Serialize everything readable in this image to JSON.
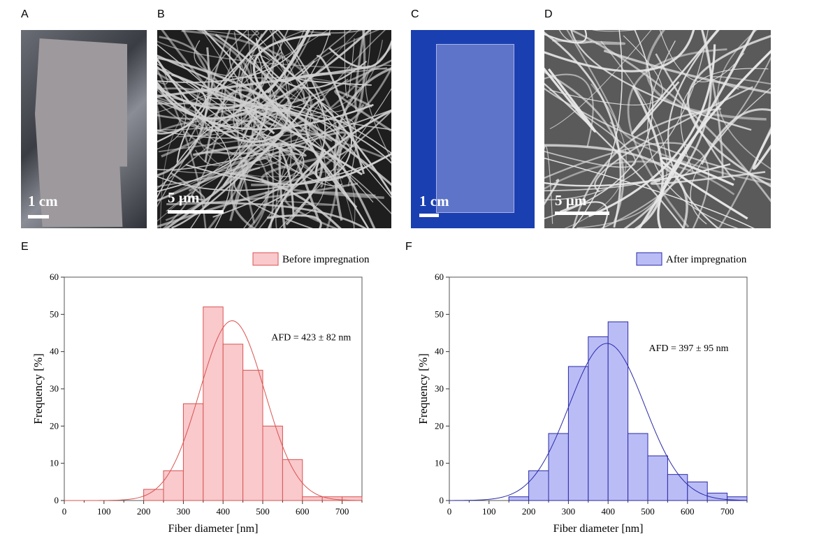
{
  "panels": {
    "A": {
      "label": "A",
      "scale": "1 cm"
    },
    "B": {
      "label": "B",
      "scale": "5 µm"
    },
    "C": {
      "label": "C",
      "scale": "1 cm"
    },
    "D": {
      "label": "D",
      "scale": "5 µm"
    },
    "E": {
      "label": "E"
    },
    "F": {
      "label": "F"
    }
  },
  "colors": {
    "before_fill": "#f9c9cc",
    "before_line": "#d9534f",
    "after_fill": "#babcf6",
    "after_line": "#2a2aa8"
  },
  "chart_data": [
    {
      "type": "bar",
      "panel": "E",
      "xlabel": "Fiber diameter [nm]",
      "ylabel": "Frequency [%]",
      "xlim": [
        0,
        750
      ],
      "ylim": [
        0,
        60
      ],
      "xticks": [
        "0",
        "100",
        "200",
        "300",
        "400",
        "500",
        "600",
        "700"
      ],
      "yticks": [
        "0",
        "10",
        "20",
        "30",
        "40",
        "50",
        "60"
      ],
      "legend": "Before impregnation",
      "legend_position": "top-right",
      "annotation": "AFD = 423 ± 82 nm",
      "bin_width": 50,
      "bin_starts": [
        200,
        250,
        300,
        350,
        400,
        450,
        500,
        550,
        600,
        650,
        700
      ],
      "values": [
        3,
        8,
        26,
        52,
        42,
        35,
        20,
        11,
        1,
        1,
        1
      ],
      "fit": {
        "mean": 423,
        "sd": 82,
        "peak": 48.3
      }
    },
    {
      "type": "bar",
      "panel": "F",
      "xlabel": "Fiber diameter [nm]",
      "ylabel": "Frequency [%]",
      "xlim": [
        0,
        750
      ],
      "ylim": [
        0,
        60
      ],
      "xticks": [
        "0",
        "100",
        "200",
        "300",
        "400",
        "500",
        "600",
        "700"
      ],
      "yticks": [
        "0",
        "10",
        "20",
        "30",
        "40",
        "50",
        "60"
      ],
      "legend": "After impregnation",
      "legend_position": "top-right",
      "annotation": "AFD = 397 ± 95 nm",
      "bin_width": 50,
      "bin_starts": [
        150,
        200,
        250,
        300,
        350,
        400,
        450,
        500,
        550,
        600,
        650,
        700
      ],
      "values": [
        1,
        8,
        18,
        36,
        44,
        48,
        18,
        12,
        7,
        5,
        2,
        1
      ],
      "fit": {
        "mean": 397,
        "sd": 95,
        "peak": 42.2
      }
    }
  ]
}
